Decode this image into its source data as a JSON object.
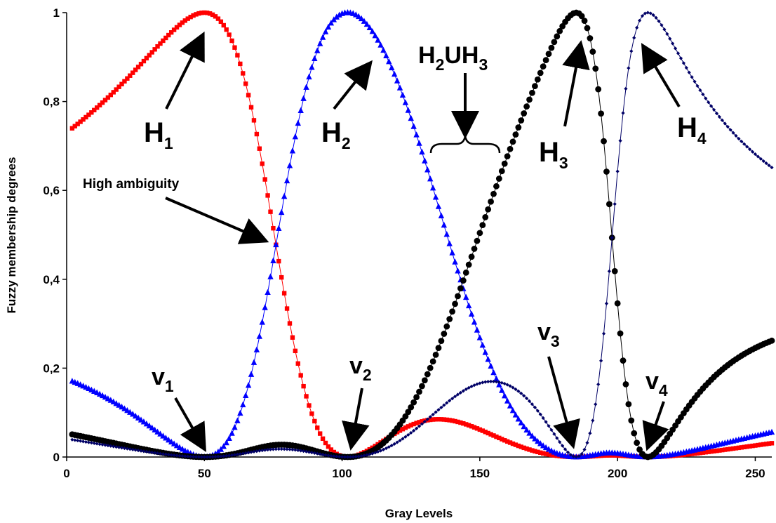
{
  "chart_data": {
    "type": "scatter",
    "title": "",
    "xlabel": "Gray Levels",
    "ylabel": "Fuzzy membership degrees",
    "xlim": [
      0,
      256
    ],
    "ylim": [
      0,
      1
    ],
    "x_ticks": [
      "0",
      "50",
      "100",
      "150",
      "200",
      "250"
    ],
    "y_ticks": [
      "0",
      "0,2",
      "0,4",
      "0,6",
      "0,8",
      "1"
    ],
    "grid": false,
    "legend": "none",
    "centers": {
      "v1": 50,
      "v2": 102,
      "v3": 185,
      "v4": 211
    },
    "series": [
      {
        "marker": "square",
        "color": "#ff0000"
      },
      {
        "marker": "triangle",
        "color": "#0000ff"
      },
      {
        "marker": "circle",
        "color": "#000000"
      },
      {
        "marker": "diamond",
        "color": "#000066"
      }
    ],
    "annotations": [
      {
        "id": "h1",
        "base": "H",
        "sub": "1"
      },
      {
        "id": "h2",
        "base": "H",
        "sub": "2"
      },
      {
        "id": "h2uh3",
        "parts": [
          "H",
          "2",
          "UH",
          "3"
        ]
      },
      {
        "id": "h3",
        "base": "H",
        "sub": "3"
      },
      {
        "id": "h4",
        "base": "H",
        "sub": "4"
      },
      {
        "id": "high-ambiguity",
        "text": "High ambiguity"
      },
      {
        "id": "v1",
        "base": "v",
        "sub": "1"
      },
      {
        "id": "v2",
        "base": "v",
        "sub": "2"
      },
      {
        "id": "v3",
        "base": "v",
        "sub": "3"
      },
      {
        "id": "v4",
        "base": "v",
        "sub": "4"
      }
    ]
  }
}
